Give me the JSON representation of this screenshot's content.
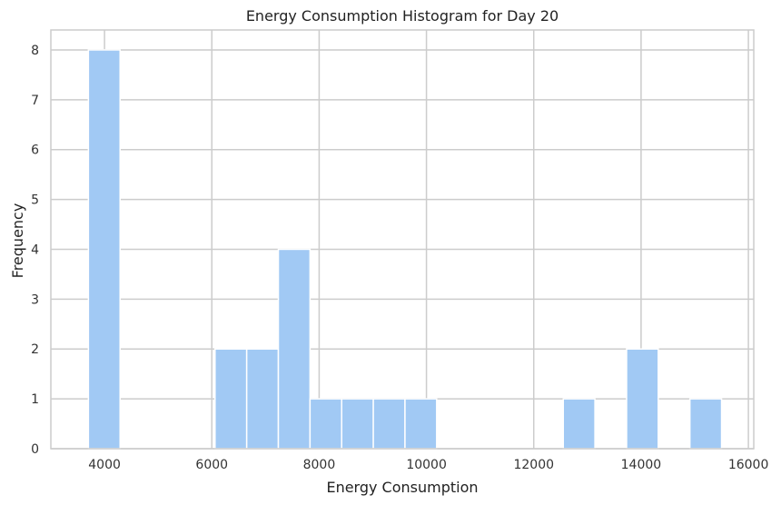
{
  "chart_data": {
    "type": "bar",
    "title": "Energy Consumption Histogram for Day 20",
    "xlabel": "Energy Consumption",
    "ylabel": "Frequency",
    "xlim": [
      3000,
      16100
    ],
    "ylim": [
      0,
      8.4
    ],
    "xticks": [
      4000,
      6000,
      8000,
      10000,
      12000,
      14000,
      16000
    ],
    "yticks": [
      0,
      1,
      2,
      3,
      4,
      5,
      6,
      7,
      8
    ],
    "grid": true,
    "bar_color": "#a1c9f4",
    "bins": [
      {
        "x0": 3700,
        "x1": 4290,
        "count": 8
      },
      {
        "x0": 4290,
        "x1": 4880,
        "count": 0
      },
      {
        "x0": 4880,
        "x1": 5470,
        "count": 0
      },
      {
        "x0": 5470,
        "x1": 6060,
        "count": 0
      },
      {
        "x0": 6060,
        "x1": 6650,
        "count": 2
      },
      {
        "x0": 6650,
        "x1": 7240,
        "count": 2
      },
      {
        "x0": 7240,
        "x1": 7830,
        "count": 4
      },
      {
        "x0": 7830,
        "x1": 8420,
        "count": 1
      },
      {
        "x0": 8420,
        "x1": 9010,
        "count": 1
      },
      {
        "x0": 9010,
        "x1": 9600,
        "count": 1
      },
      {
        "x0": 9600,
        "x1": 10190,
        "count": 1
      },
      {
        "x0": 10190,
        "x1": 10780,
        "count": 0
      },
      {
        "x0": 10780,
        "x1": 11370,
        "count": 0
      },
      {
        "x0": 11370,
        "x1": 11960,
        "count": 0
      },
      {
        "x0": 11960,
        "x1": 12550,
        "count": 0
      },
      {
        "x0": 12550,
        "x1": 13140,
        "count": 1
      },
      {
        "x0": 13140,
        "x1": 13730,
        "count": 0
      },
      {
        "x0": 13730,
        "x1": 14320,
        "count": 2
      },
      {
        "x0": 14320,
        "x1": 14910,
        "count": 0
      },
      {
        "x0": 14910,
        "x1": 15500,
        "count": 1
      }
    ]
  }
}
